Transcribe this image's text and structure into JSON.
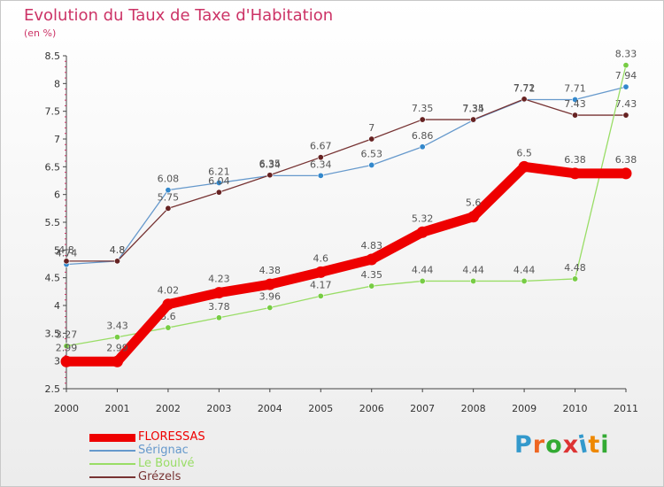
{
  "title": "Evolution du Taux de Taxe d'Habitation",
  "unit": "(en %)",
  "logo_text": "Proxiti",
  "logo_colors": [
    "#3399cc",
    "#ee6622",
    "#33aa33",
    "#dd3333",
    "#3399cc",
    "#ee8800",
    "#33aa33"
  ],
  "chart_data": {
    "type": "line",
    "title": "Evolution du Taux de Taxe d'Habitation",
    "ylabel": "(en %)",
    "xlabel": "",
    "ylim": [
      2.5,
      8.5
    ],
    "y_ticks": [
      "2.5",
      "3",
      "3.5",
      "4",
      "4.5",
      "5",
      "5.5",
      "6",
      "6.5",
      "7",
      "7.5",
      "8",
      "8.5"
    ],
    "x": [
      "2000",
      "2001",
      "2002",
      "2003",
      "2004",
      "2005",
      "2006",
      "2007",
      "2008",
      "2009",
      "2010",
      "2011"
    ],
    "grid": false,
    "legend_position": "bottom-left",
    "series": [
      {
        "name": "Sérignac",
        "color": "#6699cc",
        "marker": "#3388cc",
        "values": [
          4.74,
          4.8,
          6.08,
          6.21,
          6.34,
          6.34,
          6.53,
          6.86,
          7.34,
          7.71,
          7.71,
          7.94
        ],
        "labels": [
          "4.74",
          "4.8",
          "6.08",
          "6.21",
          "6.34",
          "6.34",
          "6.53",
          "6.86",
          "7.34",
          "7.71",
          "7.71",
          "7.94"
        ]
      },
      {
        "name": "Grézels",
        "color": "#773333",
        "marker": "#662222",
        "values": [
          4.8,
          4.8,
          5.75,
          6.04,
          6.35,
          6.67,
          7.0,
          7.35,
          7.35,
          7.72,
          7.43,
          7.43
        ],
        "labels": [
          "4.8",
          "4.8",
          "5.75",
          "6.04",
          "6.35",
          "6.67",
          "7",
          "7.35",
          "7.35",
          "7.72",
          "7.43",
          "7.43"
        ]
      },
      {
        "name": "Le Boulvé",
        "color": "#99dd66",
        "marker": "#77cc44",
        "values": [
          3.27,
          3.43,
          3.6,
          3.78,
          3.96,
          4.17,
          4.35,
          4.44,
          4.44,
          4.44,
          4.48,
          8.33
        ],
        "labels": [
          "3.27",
          "3.43",
          "3.6",
          "3.78",
          "3.96",
          "4.17",
          "4.35",
          "4.44",
          "4.44",
          "4.44",
          "4.48",
          "8.33"
        ]
      },
      {
        "name": "FLORESSAS",
        "color": "#ee0000",
        "marker": "#ee0000",
        "values": [
          2.99,
          2.99,
          4.02,
          4.23,
          4.38,
          4.6,
          4.83,
          5.32,
          5.6,
          6.5,
          6.38,
          6.38
        ],
        "labels": [
          "2.99",
          "2.99",
          "4.02",
          "4.23",
          "4.38",
          "4.6",
          "4.83",
          "5.32",
          "5.6",
          "6.5",
          "6.38",
          "6.38"
        ]
      }
    ],
    "legend": [
      {
        "name": "FLORESSAS",
        "color": "#ee0000"
      },
      {
        "name": "Sérignac",
        "color": "#6699cc"
      },
      {
        "name": "Le Boulvé",
        "color": "#99dd66"
      },
      {
        "name": "Grézels",
        "color": "#773333"
      }
    ]
  }
}
